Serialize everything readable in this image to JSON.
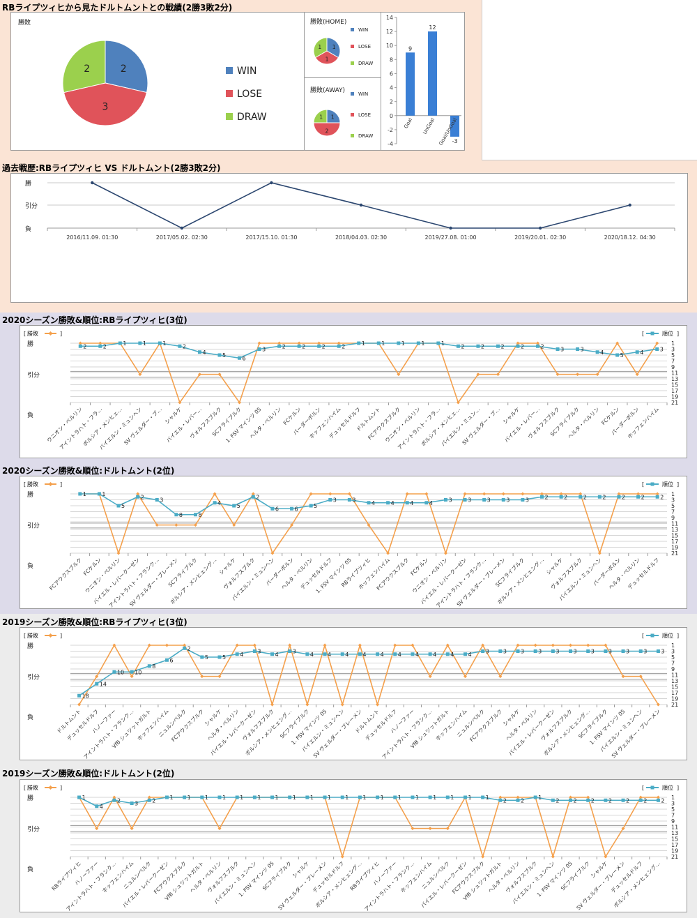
{
  "section_titles": {
    "head": "RBライプツィヒから見たドルトムントとの戦績(2勝3敗2分)",
    "history": "過去戦歴:RBライプツィヒ VS ドルトムント(2勝3敗2分)",
    "s2020_rb": "2020シーズン勝敗&順位:RBライプツィヒ(3位)",
    "s2020_bvb": "2020シーズン勝敗&順位:ドルトムント(2位)",
    "s2019_rb": "2019シーズン勝敗&順位:RBライプツィヒ(3位)",
    "s2019_bvb": "2019シーズン勝敗&順位:ドルトムント(2位)"
  },
  "colors": {
    "win": "#4f81bd",
    "lose": "#e0535a",
    "draw": "#9bd04d",
    "result_line": "#f4a04c",
    "rank_line": "#4bacc6",
    "history_line": "#2c4770",
    "goal_bar": "#3a7fd5",
    "band_top": "#fbe4d5",
    "band_2020": "#dddbea",
    "band_2019": "#ececec"
  },
  "chart_data": [
    {
      "id": "overall",
      "type": "pie",
      "title": "勝敗",
      "labels": [
        "WIN",
        "LOSE",
        "DRAW"
      ],
      "values": [
        2,
        3,
        2
      ],
      "legend_position": "right"
    },
    {
      "id": "home",
      "type": "pie",
      "title": "勝敗(HOME)",
      "labels": [
        "WIN",
        "LOSE",
        "DRAW"
      ],
      "values": [
        1,
        1,
        1
      ],
      "legend_position": "right"
    },
    {
      "id": "away",
      "type": "pie",
      "title": "勝敗(AWAY)",
      "labels": [
        "WIN",
        "LOSE",
        "DRAW"
      ],
      "values": [
        1,
        2,
        1
      ],
      "legend_position": "right"
    },
    {
      "id": "goals",
      "type": "bar",
      "categories": [
        "Goal",
        "UnGoal",
        "Goal/UnGoal"
      ],
      "values": [
        9,
        12,
        -3
      ],
      "ylim": [
        -4,
        14
      ],
      "yticks": [
        -4,
        -2,
        0,
        2,
        4,
        6,
        8,
        10,
        12,
        14
      ],
      "grid": false
    },
    {
      "id": "history",
      "type": "line",
      "title": "",
      "categories": [
        "2016/11.09. 01:30",
        "2017/05.02. 02:30",
        "2017/15.10. 01:30",
        "2018/04.03. 02:30",
        "2019/27.08. 01:00",
        "2019/20.01. 02:30",
        "2020/18.12. 04:30"
      ],
      "values": [
        "勝",
        "負",
        "勝",
        "引分",
        "負",
        "負",
        "引分"
      ],
      "y_levels": [
        "勝",
        "引分",
        "負"
      ],
      "grid": true
    },
    {
      "id": "s2020_rb",
      "type": "line",
      "legend": [
        "勝敗",
        "順位"
      ],
      "y_levels": [
        "勝",
        "引分",
        "負"
      ],
      "rank_ticks": [
        1,
        3,
        5,
        7,
        9,
        11,
        13,
        15,
        17,
        19,
        21
      ],
      "categories": [
        "ウニオン・ベルリン",
        "アイントラハト・フラ…",
        "ボルシア・メンヒェ…",
        "バイエルン・ミュンヘン",
        "SV ヴェルダー・ブ…",
        "シャルケ",
        "バイエル・レバー…",
        "ヴォルフスブルク",
        "SCフライブルク",
        "1. FSV マインツ 05",
        "ヘルタ・ベルリン",
        "FCケルン",
        "バーダーボルン",
        "ホッフェンハイム",
        "デュッセルドルフ",
        "ドルトムント",
        "FCアウクスブルク",
        "ウニオン・ベルリン",
        "アイントラハト・フラ…",
        "ボルシア・メンヒェ…",
        "バイエルン・ミュン…",
        "SV ヴェルダー・ブ…",
        "シャルケ",
        "バイエル・レバー…",
        "ヴォルフスブルク",
        "SCフライブルク",
        "ヘルタ・ベルリン",
        "FCケルン",
        "バーダーボルン",
        "ホッフェンハイム"
      ],
      "result": [
        "勝",
        "勝",
        "勝",
        "引分",
        "勝",
        "負",
        "引分",
        "引分",
        "負",
        "勝",
        "勝",
        "勝",
        "勝",
        "勝",
        "勝",
        "勝",
        "引分",
        "勝",
        "勝",
        "負",
        "引分",
        "引分",
        "勝",
        "勝",
        "引分",
        "引分",
        "引分",
        "勝",
        "引分",
        "勝"
      ],
      "rank": [
        2,
        2,
        1,
        1,
        1,
        2,
        4,
        5,
        6,
        3,
        2,
        2,
        2,
        2,
        1,
        1,
        1,
        1,
        1,
        2,
        2,
        2,
        2,
        2,
        3,
        3,
        4,
        5,
        4,
        3
      ]
    },
    {
      "id": "s2020_bvb",
      "type": "line",
      "legend": [
        "勝敗",
        "順位"
      ],
      "y_levels": [
        "勝",
        "引分",
        "負"
      ],
      "rank_ticks": [
        1,
        3,
        5,
        7,
        9,
        11,
        13,
        15,
        17,
        19,
        21
      ],
      "categories": [
        "FCアウクスブルク",
        "FCケルン",
        "ウニオン・ベルリン",
        "バイエル・レバークーゼン",
        "アイントラハト・フランク…",
        "SV ヴェルダー・ブレーメン",
        "SCフライブルク",
        "ボルシア・メンヒェング…",
        "シャルケ",
        "ヴォルフスブルク",
        "バイエルン・ミュンヘン",
        "バーダーボルン",
        "ヘルタ・ベルリン",
        "デュッセルドルフ",
        "1. FSV マインツ 05",
        "RBライプツィヒ",
        "ホッフェンハイム",
        "FCアウクスブルク",
        "FCケルン",
        "ウニオン・ベルリン",
        "バイエル・レバークーゼン",
        "アイントラハト・フランク…",
        "SV ヴェルダー・ブレーメン",
        "SCフライブルク",
        "ボルシア・メンヒェング…",
        "シャルケ",
        "ヴォルフスブルク",
        "バイエルン・ミュンヘン",
        "バーダーボルン",
        "ヘルタ・ベルリン",
        "デュッセルドルフ"
      ],
      "result": [
        "勝",
        "勝",
        "負",
        "勝",
        "引分",
        "引分",
        "引分",
        "勝",
        "引分",
        "勝",
        "負",
        "引分",
        "勝",
        "勝",
        "勝",
        "引分",
        "負",
        "勝",
        "勝",
        "負",
        "勝",
        "勝",
        "勝",
        "勝",
        "勝",
        "勝",
        "勝",
        "負",
        "勝",
        "勝",
        "勝"
      ],
      "rank": [
        1,
        1,
        5,
        2,
        3,
        8,
        8,
        4,
        5,
        2,
        6,
        6,
        5,
        3,
        3,
        4,
        4,
        4,
        4,
        3,
        3,
        3,
        3,
        3,
        2,
        2,
        2,
        2,
        2,
        2,
        2
      ]
    },
    {
      "id": "s2019_rb",
      "type": "line",
      "legend": [
        "勝敗",
        "順位"
      ],
      "y_levels": [
        "勝",
        "引分",
        "負"
      ],
      "rank_ticks": [
        1,
        3,
        5,
        7,
        9,
        11,
        13,
        15,
        17,
        19,
        21
      ],
      "categories": [
        "ドルトムント",
        "デュッセルドルフ",
        "ハノーファー",
        "アイントラハト・フランク…",
        "VfB シュツットガルト",
        "ホッフェンハイム",
        "ニュルンベルク",
        "FCアウクスブルク",
        "シャルケ",
        "ヘルタ・ベルリン",
        "バイエル・レバークーゼン",
        "ヴォルフスブルク",
        "ボルシア・メンヒェング…",
        "SCフライブルク",
        "1. FSV マインツ 05",
        "バイエルン・ミュンヘン",
        "SV ヴェルダー・ブレーメン",
        "ドルトムント",
        "デュッセルドルフ",
        "ハノーファー",
        "アイントラハト・フランク…",
        "VfB シュツットガルト",
        "ホッフェンハイム",
        "ニュルンベルク",
        "FCアウクスブルク",
        "シャルケ",
        "ヘルタ・ベルリン",
        "バイエル・レバークーゼン",
        "ヴォルフスブルク",
        "ボルシア・メンヒェング…",
        "SCフライブルク",
        "1. FSV マインツ 05",
        "バイエルン・ミュンヘン",
        "SV ヴェルダー・ブレーメン"
      ],
      "result": [
        "負",
        "引分",
        "勝",
        "引分",
        "勝",
        "勝",
        "勝",
        "引分",
        "引分",
        "勝",
        "勝",
        "負",
        "勝",
        "負",
        "勝",
        "負",
        "勝",
        "負",
        "勝",
        "勝",
        "引分",
        "勝",
        "引分",
        "勝",
        "引分",
        "勝",
        "勝",
        "勝",
        "勝",
        "勝",
        "勝",
        "引分",
        "引分",
        "負"
      ],
      "rank": [
        18,
        14,
        10,
        10,
        8,
        6,
        2,
        5,
        5,
        4,
        3,
        4,
        3,
        4,
        4,
        4,
        4,
        4,
        4,
        4,
        4,
        4,
        4,
        3,
        3,
        3,
        3,
        3,
        3,
        3,
        3,
        3,
        3,
        3
      ]
    },
    {
      "id": "s2019_bvb",
      "type": "line",
      "legend": [
        "勝敗",
        "順位"
      ],
      "y_levels": [
        "勝",
        "引分",
        "負"
      ],
      "rank_ticks": [
        1,
        3,
        5,
        7,
        9,
        11,
        13,
        15,
        17,
        19,
        21
      ],
      "categories": [
        "RBライプツィヒ",
        "ハノーファー",
        "アイントラハト・フランク…",
        "ホッフェンハイム",
        "ニュルンベルク",
        "バイエル・レバークーゼン",
        "FCアウクスブルク",
        "VfB シュツットガルト",
        "ヘルタ・ベルリン",
        "ヴォルフスブルク",
        "バイエルン・ミュンヘン",
        "1. FSV マインツ 05",
        "SCフライブルク",
        "シャルケ",
        "SV ヴェルダー・ブレーメン",
        "デュッセルドルフ",
        "ボルシア・メンヒェング…",
        "RBライプツィヒ",
        "ハノーファー",
        "アイントラハト・フランク…",
        "ホッフェンハイム",
        "ニュルンベルク",
        "バイエル・レバークーゼン",
        "FCアウクスブルク",
        "VfB シュツットガルト",
        "ヘルタ・ベルリン",
        "ヴォルフスブルク",
        "バイエルン・ミュンヘン",
        "1. FSV マインツ 05",
        "SCフライブルク",
        "シャルケ",
        "SV ヴェルダー・ブレーメン",
        "デュッセルドルフ",
        "ボルシア・メンヒェング…"
      ],
      "result": [
        "勝",
        "引分",
        "勝",
        "引分",
        "勝",
        "勝",
        "勝",
        "勝",
        "引分",
        "勝",
        "勝",
        "勝",
        "勝",
        "勝",
        "勝",
        "負",
        "勝",
        "勝",
        "勝",
        "引分",
        "引分",
        "引分",
        "勝",
        "負",
        "勝",
        "勝",
        "勝",
        "負",
        "勝",
        "勝",
        "負",
        "引分",
        "勝",
        "勝"
      ],
      "rank": [
        1,
        4,
        2,
        3,
        2,
        1,
        1,
        1,
        1,
        1,
        1,
        1,
        1,
        1,
        1,
        1,
        1,
        1,
        1,
        1,
        1,
        1,
        1,
        1,
        2,
        2,
        1,
        2,
        2,
        2,
        2,
        2,
        2,
        2
      ]
    }
  ]
}
